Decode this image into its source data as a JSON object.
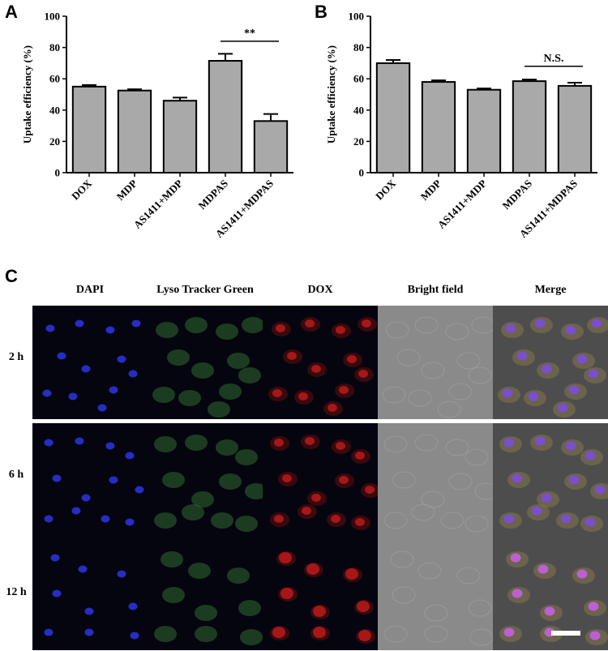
{
  "panels": {
    "a": "A",
    "b": "B",
    "c": "C"
  },
  "chart_data": [
    {
      "type": "bar",
      "panel": "A",
      "categories": [
        "DOX",
        "MDP",
        "AS1411+MDP",
        "MDPAS",
        "AS1411+MDPAS"
      ],
      "values": [
        55,
        52.5,
        46,
        71.5,
        33
      ],
      "errors": [
        1,
        0.8,
        2,
        4.5,
        4.5
      ],
      "ylabel": "Uptake efficiency (%)",
      "ylim": [
        0,
        100
      ],
      "yticks": [
        0,
        20,
        40,
        60,
        80,
        100
      ],
      "bar_color": "#a9a9a9",
      "annotation": {
        "text": "**",
        "from": 3,
        "to": 4,
        "y": 84
      }
    },
    {
      "type": "bar",
      "panel": "B",
      "categories": [
        "DOX",
        "MDP",
        "AS1411+MDP",
        "MDPAS",
        "AS1411+MDPAS"
      ],
      "values": [
        70,
        58,
        53,
        58.5,
        55.5
      ],
      "errors": [
        2,
        1,
        0.8,
        1,
        2
      ],
      "ylabel": "Uptake efficiency (%)",
      "ylim": [
        0,
        100
      ],
      "yticks": [
        0,
        20,
        40,
        60,
        80,
        100
      ],
      "bar_color": "#a9a9a9",
      "annotation": {
        "text": "N.S.",
        "from": 3,
        "to": 4,
        "y": 68
      }
    }
  ],
  "micrograph": {
    "columns": [
      "DAPI",
      "Lyso Tracker Green",
      "DOX",
      "Bright field",
      "Merge"
    ],
    "rows": [
      "2 h",
      "6 h",
      "12 h"
    ],
    "channel_colors": {
      "DAPI": "#2a32d8",
      "Lyso Tracker Green": "#2f6a2f",
      "DOX": "#b21a1a",
      "Bright field": "#8c8c8c",
      "Merge": "#7a4fd0"
    }
  }
}
